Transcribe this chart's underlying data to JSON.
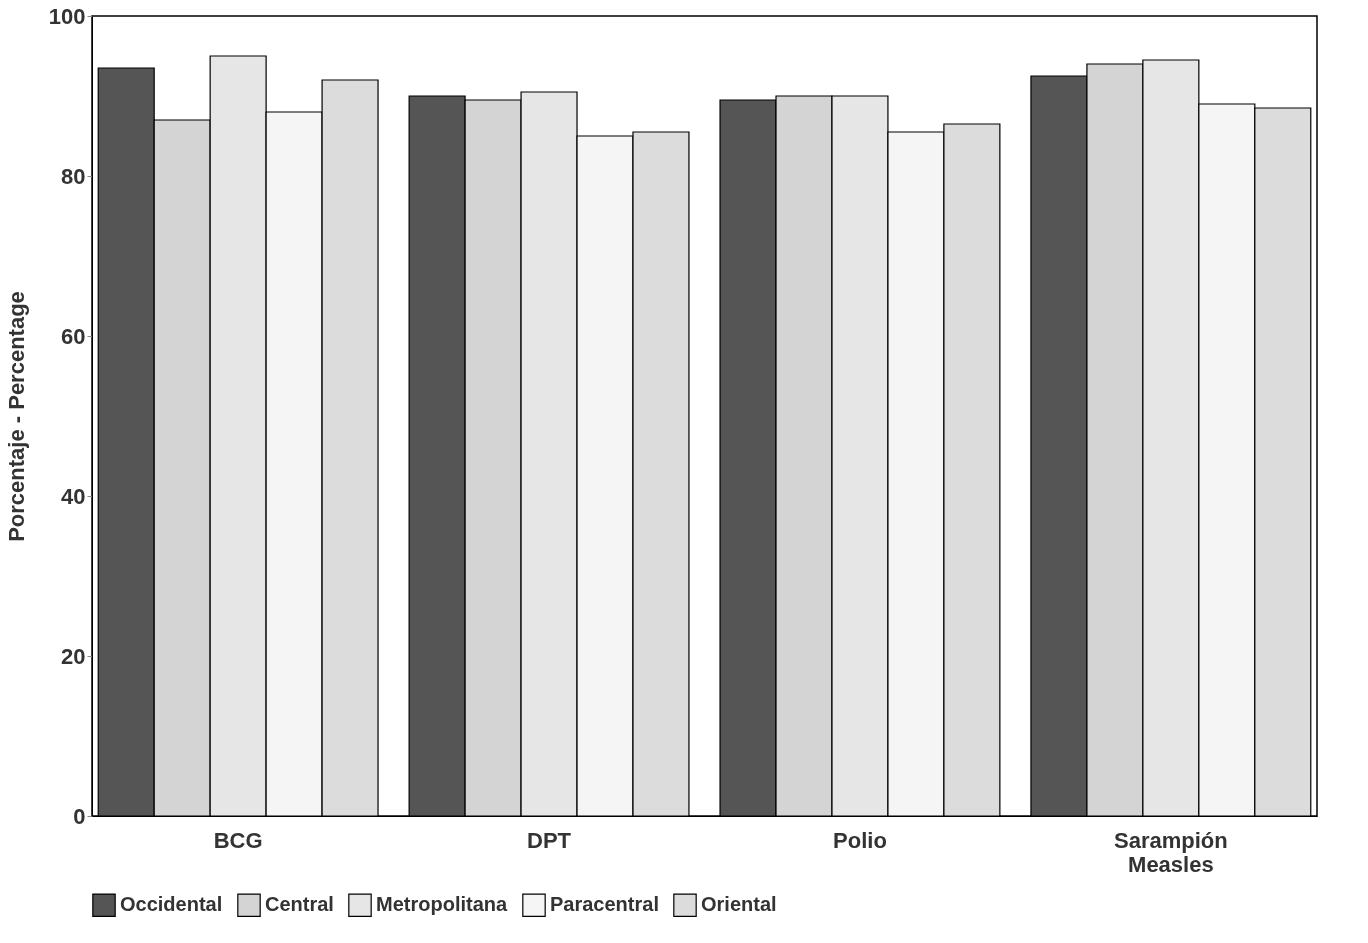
{
  "chart_data": {
    "type": "bar",
    "ylabel": "Porcentaje - Percentage",
    "categories": [
      "BCG",
      "DPT",
      "Polio",
      "Sarampión\nMeasles"
    ],
    "series": [
      {
        "name": "Occidental",
        "color": "#555555",
        "values": [
          93.5,
          90,
          89.5,
          92.5
        ]
      },
      {
        "name": "Central",
        "color": "#d4d4d4",
        "values": [
          87,
          89.5,
          90,
          94
        ]
      },
      {
        "name": "Metropolitana",
        "color": "#e6e6e6",
        "values": [
          95,
          90.5,
          90,
          94.5
        ]
      },
      {
        "name": "Paracentral",
        "color": "#f5f5f5",
        "values": [
          88,
          85,
          85.5,
          89
        ]
      },
      {
        "name": "Oriental",
        "color": "#dcdcdc",
        "values": [
          92,
          85.5,
          86.5,
          88.5
        ]
      }
    ],
    "ylim": [
      0,
      100
    ],
    "yticks": [
      0,
      20,
      40,
      60,
      80,
      100
    ],
    "grid": false,
    "legend": "bottom"
  }
}
